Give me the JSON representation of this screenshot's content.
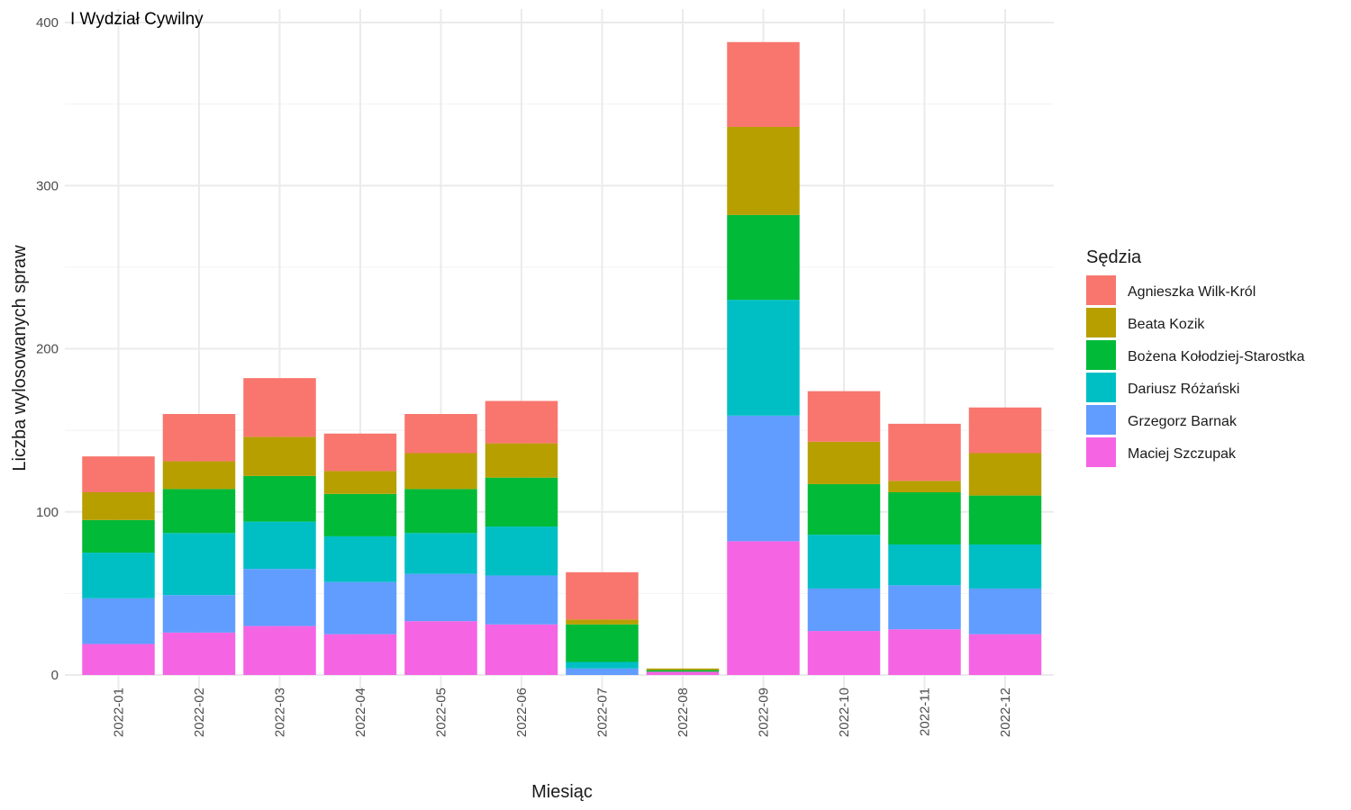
{
  "chart_data": {
    "type": "bar",
    "stacked": true,
    "title": "I Wydział Cywilny",
    "xlabel": "Miesiąc",
    "ylabel": "Liczba wylosowanych spraw",
    "ylim": [
      0,
      400
    ],
    "yticks": [
      0,
      100,
      200,
      300,
      400
    ],
    "grid": true,
    "legend_position": "right",
    "legend_title": "Sędzia",
    "categories": [
      "2022-01",
      "2022-02",
      "2022-03",
      "2022-04",
      "2022-05",
      "2022-06",
      "2022-07",
      "2022-08",
      "2022-09",
      "2022-10",
      "2022-11",
      "2022-12"
    ],
    "series": [
      {
        "name": "Maciej Szczupak",
        "color": "#F564E3",
        "values": [
          19,
          26,
          30,
          25,
          33,
          31,
          0,
          2,
          82,
          27,
          28,
          25
        ]
      },
      {
        "name": "Grzegorz Barnak",
        "color": "#619CFF",
        "values": [
          28,
          23,
          35,
          32,
          29,
          30,
          4,
          0,
          77,
          26,
          27,
          28
        ]
      },
      {
        "name": "Dariusz Różański",
        "color": "#00BFC4",
        "values": [
          28,
          38,
          29,
          28,
          25,
          30,
          4,
          0,
          71,
          33,
          25,
          27
        ]
      },
      {
        "name": "Bożena Kołodziej-Starostka",
        "color": "#00BA38",
        "values": [
          20,
          27,
          28,
          26,
          27,
          30,
          23,
          1,
          52,
          31,
          32,
          30
        ]
      },
      {
        "name": "Beata Kozik",
        "color": "#B79F00",
        "values": [
          17,
          17,
          24,
          14,
          22,
          21,
          3,
          1,
          54,
          26,
          7,
          26
        ]
      },
      {
        "name": "Agnieszka Wilk-Król",
        "color": "#F8766D",
        "values": [
          22,
          29,
          36,
          23,
          24,
          26,
          29,
          0,
          52,
          31,
          35,
          28
        ]
      }
    ],
    "legend_order": [
      "Agnieszka Wilk-Król",
      "Beata Kozik",
      "Bożena Kołodziej-Starostka",
      "Dariusz Różański",
      "Grzegorz Barnak",
      "Maciej Szczupak"
    ]
  }
}
